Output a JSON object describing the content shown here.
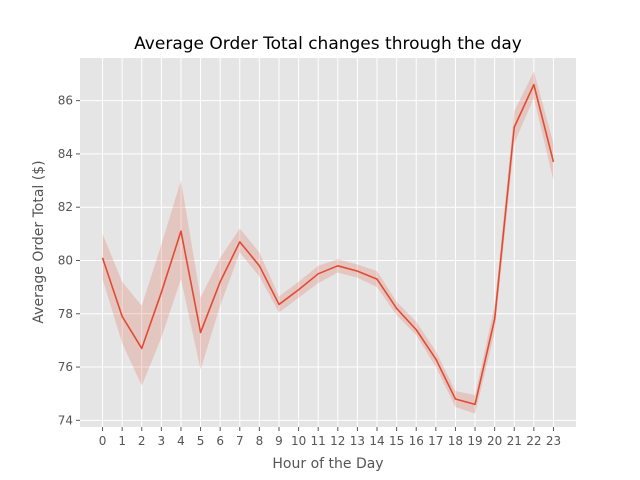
{
  "chart_data": {
    "type": "line",
    "title": "Average Order Total changes through the day",
    "xlabel": "Hour of the Day",
    "ylabel": "Average Order Total ($)",
    "x": [
      0,
      1,
      2,
      3,
      4,
      5,
      6,
      7,
      8,
      9,
      10,
      11,
      12,
      13,
      14,
      15,
      16,
      17,
      18,
      19,
      20,
      21,
      22,
      23
    ],
    "series": [
      {
        "values": [
          80.1,
          77.9,
          76.7,
          78.8,
          81.1,
          77.3,
          79.2,
          80.7,
          79.8,
          78.35,
          78.9,
          79.5,
          79.8,
          79.6,
          79.3,
          78.2,
          77.4,
          76.3,
          74.8,
          74.6,
          77.8,
          85.0,
          86.6,
          83.7
        ],
        "ci_lower": [
          79.3,
          76.9,
          75.3,
          77.1,
          79.3,
          75.9,
          78.3,
          80.3,
          79.4,
          78.05,
          78.6,
          79.15,
          79.55,
          79.35,
          79.0,
          77.95,
          77.2,
          76.0,
          74.5,
          74.25,
          77.3,
          84.4,
          86.1,
          83.0
        ],
        "ci_upper": [
          81.0,
          79.2,
          78.3,
          80.6,
          83.0,
          78.6,
          80.1,
          81.2,
          80.3,
          78.65,
          79.2,
          79.8,
          80.05,
          79.85,
          79.6,
          78.45,
          77.7,
          76.6,
          75.1,
          74.95,
          78.3,
          85.6,
          87.1,
          84.4
        ]
      }
    ],
    "xticks": [
      "0",
      "1",
      "2",
      "3",
      "4",
      "5",
      "6",
      "7",
      "8",
      "9",
      "10",
      "11",
      "12",
      "13",
      "14",
      "15",
      "16",
      "17",
      "18",
      "19",
      "20",
      "21",
      "22",
      "23"
    ],
    "yticks": [
      74,
      76,
      78,
      80,
      82,
      84,
      86
    ],
    "ylim": [
      73.75,
      87.6
    ],
    "xlim": [
      -1.15,
      24.15
    ],
    "grid": true,
    "colors": {
      "line": "#E24A33",
      "band": "#E24A33",
      "plot_background": "#E5E5E5",
      "grid": "#FFFFFF"
    }
  }
}
